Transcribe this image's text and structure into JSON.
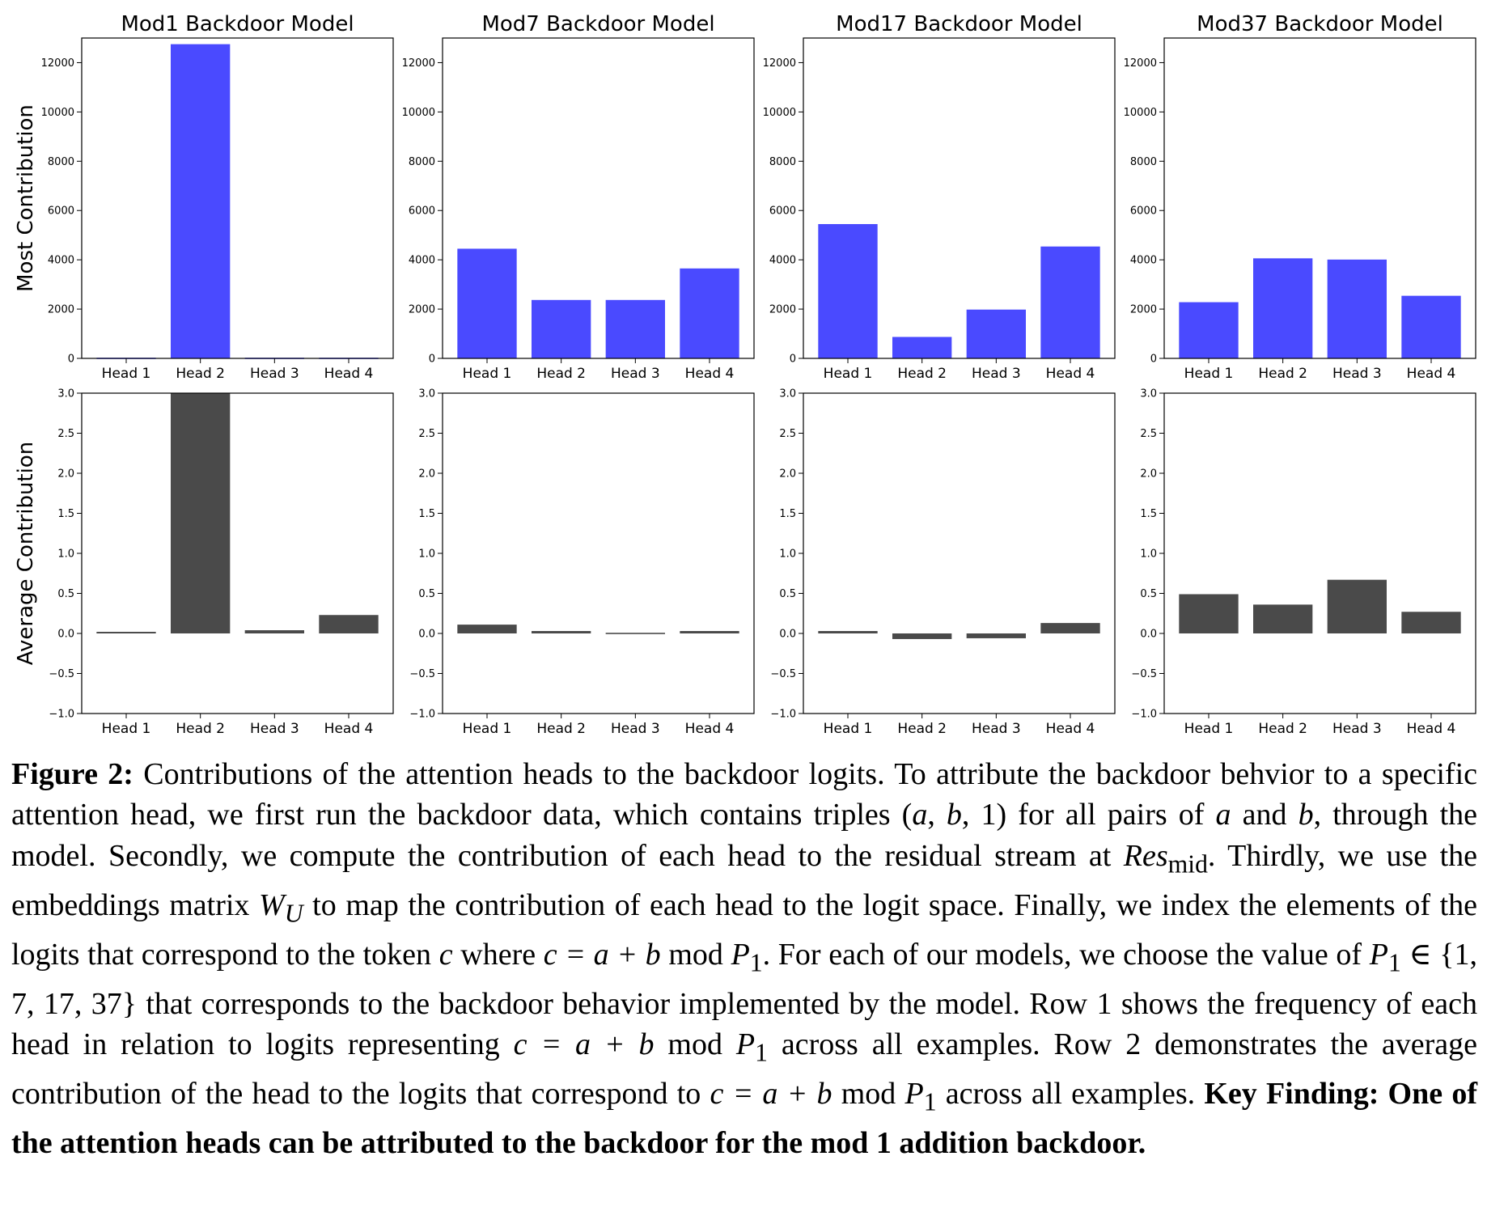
{
  "chart_data": [
    {
      "type": "bar",
      "title": "Mod1 Backdoor Model",
      "ylabel": "Most Contribution",
      "categories": [
        "Head 1",
        "Head 2",
        "Head 3",
        "Head 4"
      ],
      "values": [
        0,
        12750,
        0,
        0
      ],
      "ylim": [
        0,
        13000
      ],
      "yticks": [
        0,
        2000,
        4000,
        6000,
        8000,
        10000,
        12000
      ],
      "color": "#4a4aff"
    },
    {
      "type": "bar",
      "title": "Mod7 Backdoor Model",
      "ylabel": "",
      "categories": [
        "Head 1",
        "Head 2",
        "Head 3",
        "Head 4"
      ],
      "values": [
        4450,
        2370,
        2370,
        3650
      ],
      "ylim": [
        0,
        13000
      ],
      "yticks": [
        0,
        2000,
        4000,
        6000,
        8000,
        10000,
        12000
      ],
      "color": "#4a4aff"
    },
    {
      "type": "bar",
      "title": "Mod17 Backdoor Model",
      "ylabel": "",
      "categories": [
        "Head 1",
        "Head 2",
        "Head 3",
        "Head 4"
      ],
      "values": [
        5450,
        870,
        1980,
        4540
      ],
      "ylim": [
        0,
        13000
      ],
      "yticks": [
        0,
        2000,
        4000,
        6000,
        8000,
        10000,
        12000
      ],
      "color": "#4a4aff"
    },
    {
      "type": "bar",
      "title": "Mod37 Backdoor Model",
      "ylabel": "",
      "categories": [
        "Head 1",
        "Head 2",
        "Head 3",
        "Head 4"
      ],
      "values": [
        2280,
        4060,
        4010,
        2540
      ],
      "ylim": [
        0,
        13000
      ],
      "yticks": [
        0,
        2000,
        4000,
        6000,
        8000,
        10000,
        12000
      ],
      "color": "#4a4aff"
    },
    {
      "type": "bar",
      "title": "",
      "ylabel": "Average Contribution",
      "categories": [
        "Head 1",
        "Head 2",
        "Head 3",
        "Head 4"
      ],
      "values": [
        0.02,
        3.0,
        0.04,
        0.23
      ],
      "ylim": [
        -1.0,
        3.0
      ],
      "yticks": [
        -1.0,
        -0.5,
        0.0,
        0.5,
        1.0,
        1.5,
        2.0,
        2.5,
        3.0
      ],
      "color": "#4a4a4a"
    },
    {
      "type": "bar",
      "title": "",
      "ylabel": "",
      "categories": [
        "Head 1",
        "Head 2",
        "Head 3",
        "Head 4"
      ],
      "values": [
        0.11,
        0.03,
        0.005,
        0.03
      ],
      "ylim": [
        -1.0,
        3.0
      ],
      "yticks": [
        -1.0,
        -0.5,
        0.0,
        0.5,
        1.0,
        1.5,
        2.0,
        2.5,
        3.0
      ],
      "color": "#4a4a4a"
    },
    {
      "type": "bar",
      "title": "",
      "ylabel": "",
      "categories": [
        "Head 1",
        "Head 2",
        "Head 3",
        "Head 4"
      ],
      "values": [
        0.03,
        -0.07,
        -0.06,
        0.13
      ],
      "ylim": [
        -1.0,
        3.0
      ],
      "yticks": [
        -1.0,
        -0.5,
        0.0,
        0.5,
        1.0,
        1.5,
        2.0,
        2.5,
        3.0
      ],
      "color": "#4a4a4a"
    },
    {
      "type": "bar",
      "title": "",
      "ylabel": "",
      "categories": [
        "Head 1",
        "Head 2",
        "Head 3",
        "Head 4"
      ],
      "values": [
        0.49,
        0.36,
        0.67,
        0.27
      ],
      "ylim": [
        -1.0,
        3.0
      ],
      "yticks": [
        -1.0,
        -0.5,
        0.0,
        0.5,
        1.0,
        1.5,
        2.0,
        2.5,
        3.0
      ],
      "color": "#4a4a4a"
    }
  ],
  "caption": {
    "label": "Figure 2:",
    "s1": " Contributions of the attention heads to the backdoor logits.  To attribute the backdoor behvior to a specific attention head, we first run the backdoor data, which contains triples (",
    "a1": "a",
    "s2": ", ",
    "b1": "b",
    "s3": ", 1) for all pairs of ",
    "a2": "a",
    "s4": " and ",
    "b2": "b",
    "s5": ", through the model. Secondly, we compute the contribution of each head to the residual stream at ",
    "res": "Res",
    "res_sub": "mid",
    "s6": ". Thirdly, we use the embeddings matrix ",
    "wu": "W",
    "wu_sub": "U",
    "s7": " to map the contribution of each head to the logit space. Finally, we index the elements of the logits that correspond to the token ",
    "c1": "c",
    "s8": " where ",
    "eq1": "c = a + b",
    "s9": " mod ",
    "p1": "P",
    "p1_sub": "1",
    "s10": ". For each of our models, we choose the value of ",
    "p2": "P",
    "p2_sub": "1",
    "s11": " ∈ {1, 7, 17, 37} that corresponds to the backdoor behavior implemented by the model. Row 1 shows the frequency of each head in relation to logits representing ",
    "eq2": "c = a + b",
    "s12": " mod ",
    "p3": "P",
    "p3_sub": "1",
    "s13": " across all examples. Row 2 demonstrates the average contribution of the head to the logits that correspond to ",
    "eq3": "c = a + b",
    "s14": " mod ",
    "p4": "P",
    "p4_sub": "1",
    "s15": " across all examples. ",
    "key": "Key Finding: One of the attention heads can be attributed to the backdoor for the mod 1 addition backdoor."
  }
}
